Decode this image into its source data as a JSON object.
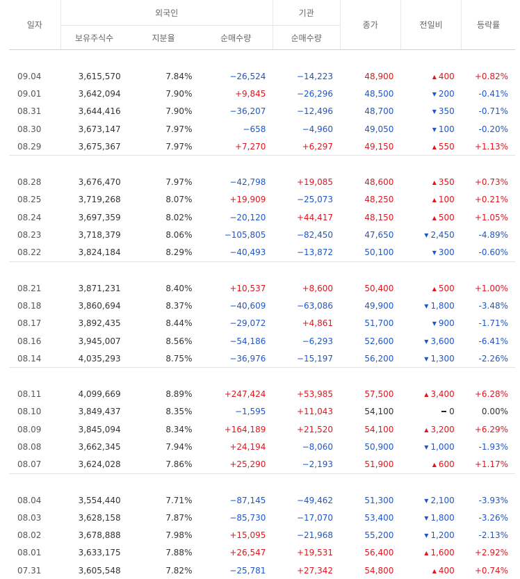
{
  "headers": {
    "date": "일자",
    "foreign": "외국인",
    "institution": "기관",
    "holdings": "보유주식수",
    "ratio": "지분율",
    "foreign_net": "순매수량",
    "inst_net": "순매수량",
    "close": "종가",
    "change": "전일비",
    "pct": "등락률"
  },
  "groups": [
    [
      {
        "date": "09.04",
        "holdings": "3,615,570",
        "ratio": "7.84%",
        "fnet": "−26,524",
        "inet": "−14,223",
        "close": "48,900",
        "dir": "up",
        "change": "400",
        "pct": "+0.82%"
      },
      {
        "date": "09.01",
        "holdings": "3,642,094",
        "ratio": "7.90%",
        "fnet": "+9,845",
        "inet": "−26,296",
        "close": "48,500",
        "dir": "down",
        "change": "200",
        "pct": "-0.41%"
      },
      {
        "date": "08.31",
        "holdings": "3,644,416",
        "ratio": "7.90%",
        "fnet": "−36,207",
        "inet": "−12,496",
        "close": "48,700",
        "dir": "down",
        "change": "350",
        "pct": "-0.71%"
      },
      {
        "date": "08.30",
        "holdings": "3,673,147",
        "ratio": "7.97%",
        "fnet": "−658",
        "inet": "−4,960",
        "close": "49,050",
        "dir": "down",
        "change": "100",
        "pct": "-0.20%"
      },
      {
        "date": "08.29",
        "holdings": "3,675,367",
        "ratio": "7.97%",
        "fnet": "+7,270",
        "inet": "+6,297",
        "close": "49,150",
        "dir": "up",
        "change": "550",
        "pct": "+1.13%"
      }
    ],
    [
      {
        "date": "08.28",
        "holdings": "3,676,470",
        "ratio": "7.97%",
        "fnet": "−42,798",
        "inet": "+19,085",
        "close": "48,600",
        "dir": "up",
        "change": "350",
        "pct": "+0.73%"
      },
      {
        "date": "08.25",
        "holdings": "3,719,268",
        "ratio": "8.07%",
        "fnet": "+19,909",
        "inet": "−25,073",
        "close": "48,250",
        "dir": "up",
        "change": "100",
        "pct": "+0.21%"
      },
      {
        "date": "08.24",
        "holdings": "3,697,359",
        "ratio": "8.02%",
        "fnet": "−20,120",
        "inet": "+44,417",
        "close": "48,150",
        "dir": "up",
        "change": "500",
        "pct": "+1.05%"
      },
      {
        "date": "08.23",
        "holdings": "3,718,379",
        "ratio": "8.06%",
        "fnet": "−105,805",
        "inet": "−82,450",
        "close": "47,650",
        "dir": "down",
        "change": "2,450",
        "pct": "-4.89%"
      },
      {
        "date": "08.22",
        "holdings": "3,824,184",
        "ratio": "8.29%",
        "fnet": "−40,493",
        "inet": "−13,872",
        "close": "50,100",
        "dir": "down",
        "change": "300",
        "pct": "-0.60%"
      }
    ],
    [
      {
        "date": "08.21",
        "holdings": "3,871,231",
        "ratio": "8.40%",
        "fnet": "+10,537",
        "inet": "+8,600",
        "close": "50,400",
        "dir": "up",
        "change": "500",
        "pct": "+1.00%"
      },
      {
        "date": "08.18",
        "holdings": "3,860,694",
        "ratio": "8.37%",
        "fnet": "−40,609",
        "inet": "−63,086",
        "close": "49,900",
        "dir": "down",
        "change": "1,800",
        "pct": "-3.48%"
      },
      {
        "date": "08.17",
        "holdings": "3,892,435",
        "ratio": "8.44%",
        "fnet": "−29,072",
        "inet": "+4,861",
        "close": "51,700",
        "dir": "down",
        "change": "900",
        "pct": "-1.71%"
      },
      {
        "date": "08.16",
        "holdings": "3,945,007",
        "ratio": "8.56%",
        "fnet": "−54,186",
        "inet": "−6,293",
        "close": "52,600",
        "dir": "down",
        "change": "3,600",
        "pct": "-6.41%"
      },
      {
        "date": "08.14",
        "holdings": "4,035,293",
        "ratio": "8.75%",
        "fnet": "−36,976",
        "inet": "−15,197",
        "close": "56,200",
        "dir": "down",
        "change": "1,300",
        "pct": "-2.26%"
      }
    ],
    [
      {
        "date": "08.11",
        "holdings": "4,099,669",
        "ratio": "8.89%",
        "fnet": "+247,424",
        "inet": "+53,985",
        "close": "57,500",
        "dir": "up",
        "change": "3,400",
        "pct": "+6.28%"
      },
      {
        "date": "08.10",
        "holdings": "3,849,437",
        "ratio": "8.35%",
        "fnet": "−1,595",
        "inet": "+11,043",
        "close": "54,100",
        "dir": "neu",
        "change": "0",
        "pct": "0.00%"
      },
      {
        "date": "08.09",
        "holdings": "3,845,094",
        "ratio": "8.34%",
        "fnet": "+164,189",
        "inet": "+21,520",
        "close": "54,100",
        "dir": "up",
        "change": "3,200",
        "pct": "+6.29%"
      },
      {
        "date": "08.08",
        "holdings": "3,662,345",
        "ratio": "7.94%",
        "fnet": "+24,194",
        "inet": "−8,060",
        "close": "50,900",
        "dir": "down",
        "change": "1,000",
        "pct": "-1.93%"
      },
      {
        "date": "08.07",
        "holdings": "3,624,028",
        "ratio": "7.86%",
        "fnet": "+25,290",
        "inet": "−2,193",
        "close": "51,900",
        "dir": "up",
        "change": "600",
        "pct": "+1.17%"
      }
    ],
    [
      {
        "date": "08.04",
        "holdings": "3,554,440",
        "ratio": "7.71%",
        "fnet": "−87,145",
        "inet": "−49,462",
        "close": "51,300",
        "dir": "down",
        "change": "2,100",
        "pct": "-3.93%"
      },
      {
        "date": "08.03",
        "holdings": "3,628,158",
        "ratio": "7.87%",
        "fnet": "−85,730",
        "inet": "−17,070",
        "close": "53,400",
        "dir": "down",
        "change": "1,800",
        "pct": "-3.26%"
      },
      {
        "date": "08.02",
        "holdings": "3,678,888",
        "ratio": "7.98%",
        "fnet": "+15,095",
        "inet": "−21,968",
        "close": "55,200",
        "dir": "down",
        "change": "1,200",
        "pct": "-2.13%"
      },
      {
        "date": "08.01",
        "holdings": "3,633,175",
        "ratio": "7.88%",
        "fnet": "+26,547",
        "inet": "+19,531",
        "close": "56,400",
        "dir": "up",
        "change": "1,600",
        "pct": "+2.92%"
      },
      {
        "date": "07.31",
        "holdings": "3,605,548",
        "ratio": "7.82%",
        "fnet": "−25,781",
        "inet": "+27,342",
        "close": "54,800",
        "dir": "up",
        "change": "400",
        "pct": "+0.74%"
      }
    ]
  ]
}
